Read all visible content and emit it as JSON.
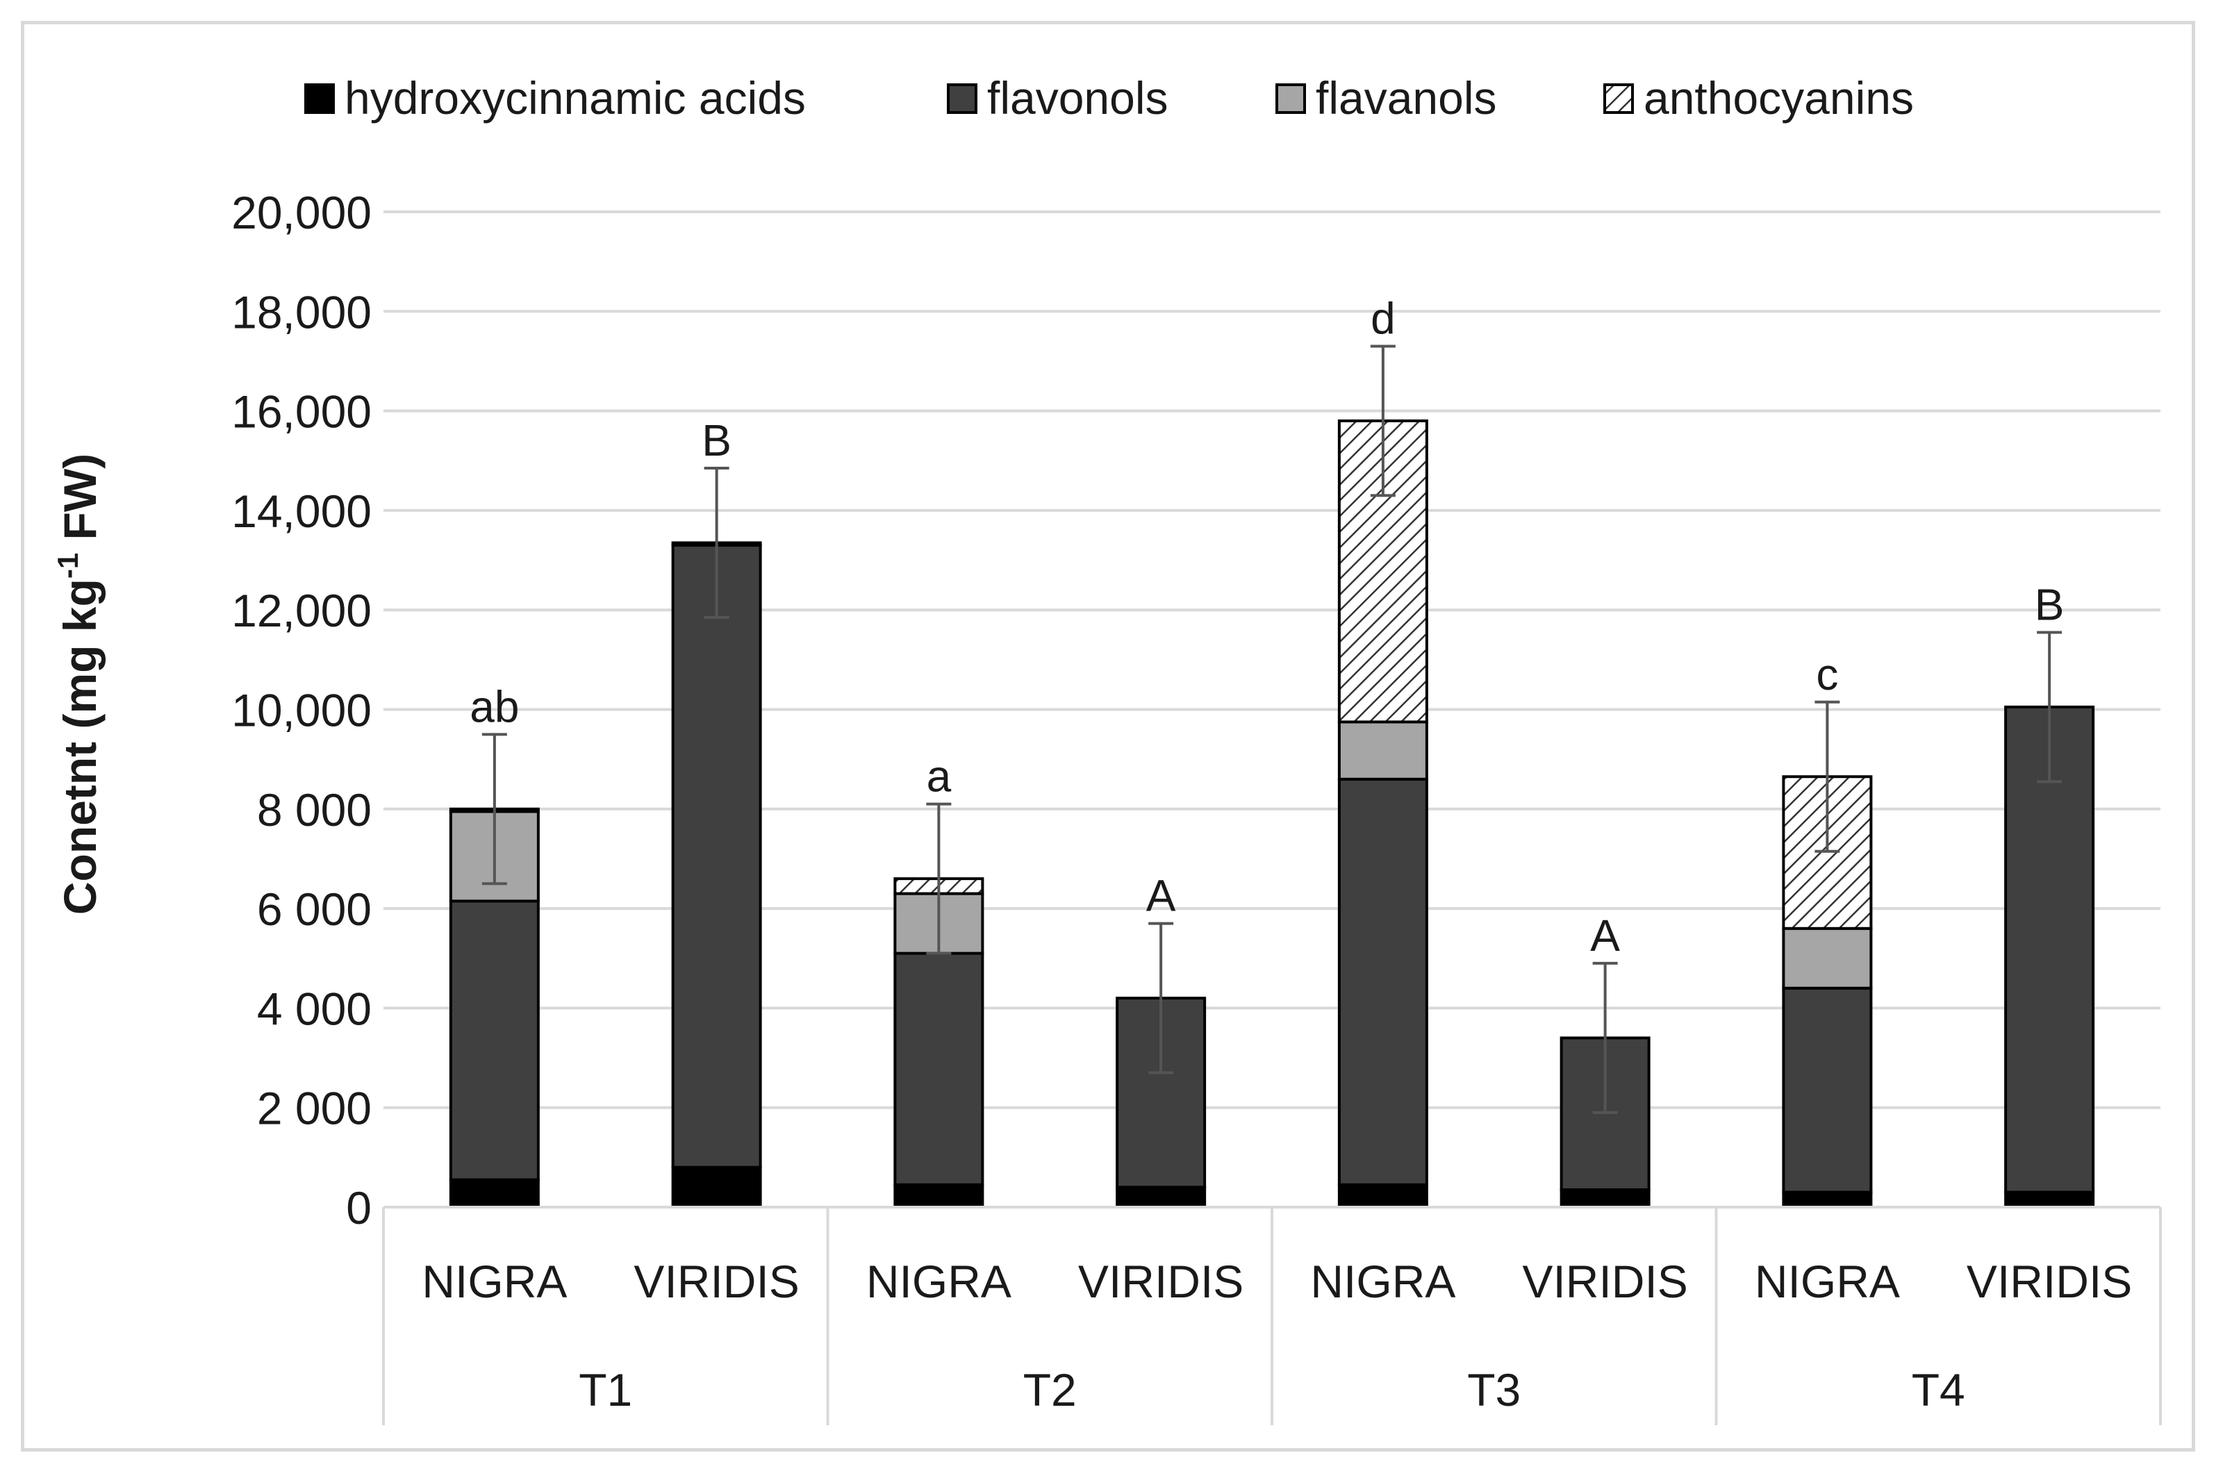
{
  "chart_data": {
    "type": "bar",
    "stacked": true,
    "ylabel": "Conetnt (mg kg-1 FW)",
    "ylabel_parts": {
      "main": "Conetnt (mg kg",
      "sup": "-1",
      "tail": " FW)"
    },
    "ylim": [
      0,
      20000
    ],
    "yticks": [
      0,
      2000,
      4000,
      6000,
      8000,
      10000,
      12000,
      14000,
      16000,
      18000,
      20000
    ],
    "ytick_labels": [
      "0",
      "2 000",
      "4 000",
      "6 000",
      "8 000",
      "10,000",
      "12,000",
      "14,000",
      "16,000",
      "18,000",
      "20,000"
    ],
    "grid": true,
    "legend_position": "top",
    "groups": [
      "T1",
      "T2",
      "T3",
      "T4"
    ],
    "categories": [
      "NIGRA",
      "VIRIDIS",
      "NIGRA",
      "VIRIDIS",
      "NIGRA",
      "VIRIDIS",
      "NIGRA",
      "VIRIDIS"
    ],
    "series": [
      {
        "name": "hydroxycinnamic acids",
        "color": "#000000",
        "pattern": "solid",
        "values": [
          550,
          800,
          450,
          400,
          450,
          350,
          300,
          300
        ]
      },
      {
        "name": "flavonols",
        "color": "#404040",
        "pattern": "solid",
        "values": [
          5600,
          12500,
          4650,
          3800,
          8150,
          3050,
          4100,
          9750
        ]
      },
      {
        "name": "flavanols",
        "color": "#a6a6a6",
        "pattern": "solid",
        "values": [
          1800,
          0,
          1200,
          0,
          1150,
          0,
          1200,
          0
        ]
      },
      {
        "name": "anthocyanins",
        "color": "#ffffff",
        "pattern": "hatch",
        "values": [
          50,
          50,
          300,
          0,
          6050,
          0,
          3050,
          0
        ]
      }
    ],
    "error_bars": [
      1500,
      1500,
      1500,
      1500,
      1500,
      1500,
      1500,
      1500
    ],
    "significance_labels": [
      "ab",
      "B",
      "a",
      "A",
      "d",
      "A",
      "c",
      "B"
    ]
  }
}
